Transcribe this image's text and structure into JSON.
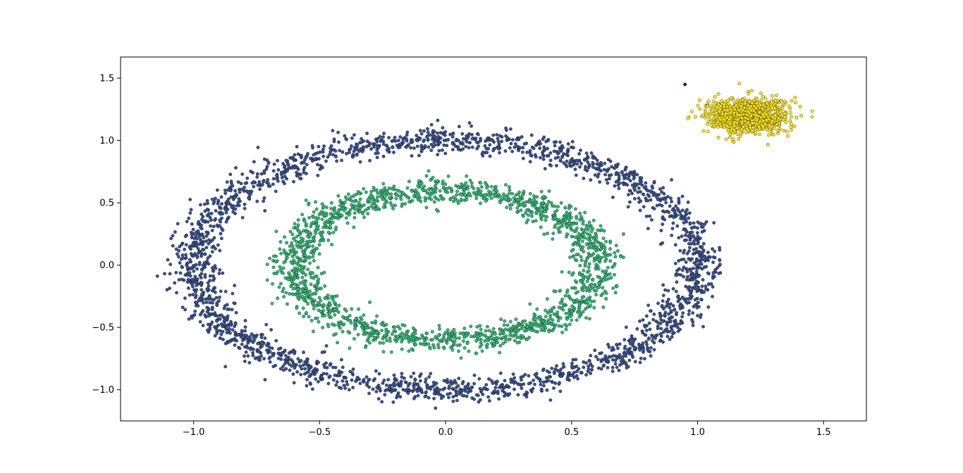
{
  "chart_data": {
    "type": "scatter",
    "title": "",
    "xlabel": "",
    "ylabel": "",
    "xlim": [
      -1.29,
      1.67
    ],
    "ylim": [
      -1.25,
      1.67
    ],
    "grid": false,
    "legend": "none",
    "x_ticks": [
      -1.0,
      -0.5,
      0.0,
      0.5,
      1.0,
      1.5
    ],
    "y_ticks": [
      -1.0,
      -0.5,
      0.0,
      0.5,
      1.0,
      1.5
    ],
    "x_tick_labels": [
      "−1.0",
      "−0.5",
      "0.0",
      "0.5",
      "1.0",
      "1.5"
    ],
    "y_tick_labels": [
      "−1.0",
      "−0.5",
      "0.0",
      "0.5",
      "1.0",
      "1.5"
    ],
    "series": [
      {
        "cluster": "outer-ring",
        "shape": "ring",
        "color": "#3b528b",
        "center": [
          0.0,
          0.0
        ],
        "radius": 1.0,
        "noise": 0.05,
        "count": 2400
      },
      {
        "cluster": "inner-ring",
        "shape": "ring",
        "color": "#35b779",
        "center": [
          0.0,
          0.0
        ],
        "radius": 0.6,
        "noise": 0.05,
        "count": 1800
      },
      {
        "cluster": "blob",
        "shape": "gaussian",
        "color": "#fde725",
        "center": [
          1.2,
          1.2
        ],
        "std": 0.08,
        "count": 1000
      },
      {
        "cluster": "noise-point",
        "shape": "points",
        "color": "#440154",
        "points": [
          [
            0.95,
            1.45
          ]
        ]
      }
    ]
  }
}
